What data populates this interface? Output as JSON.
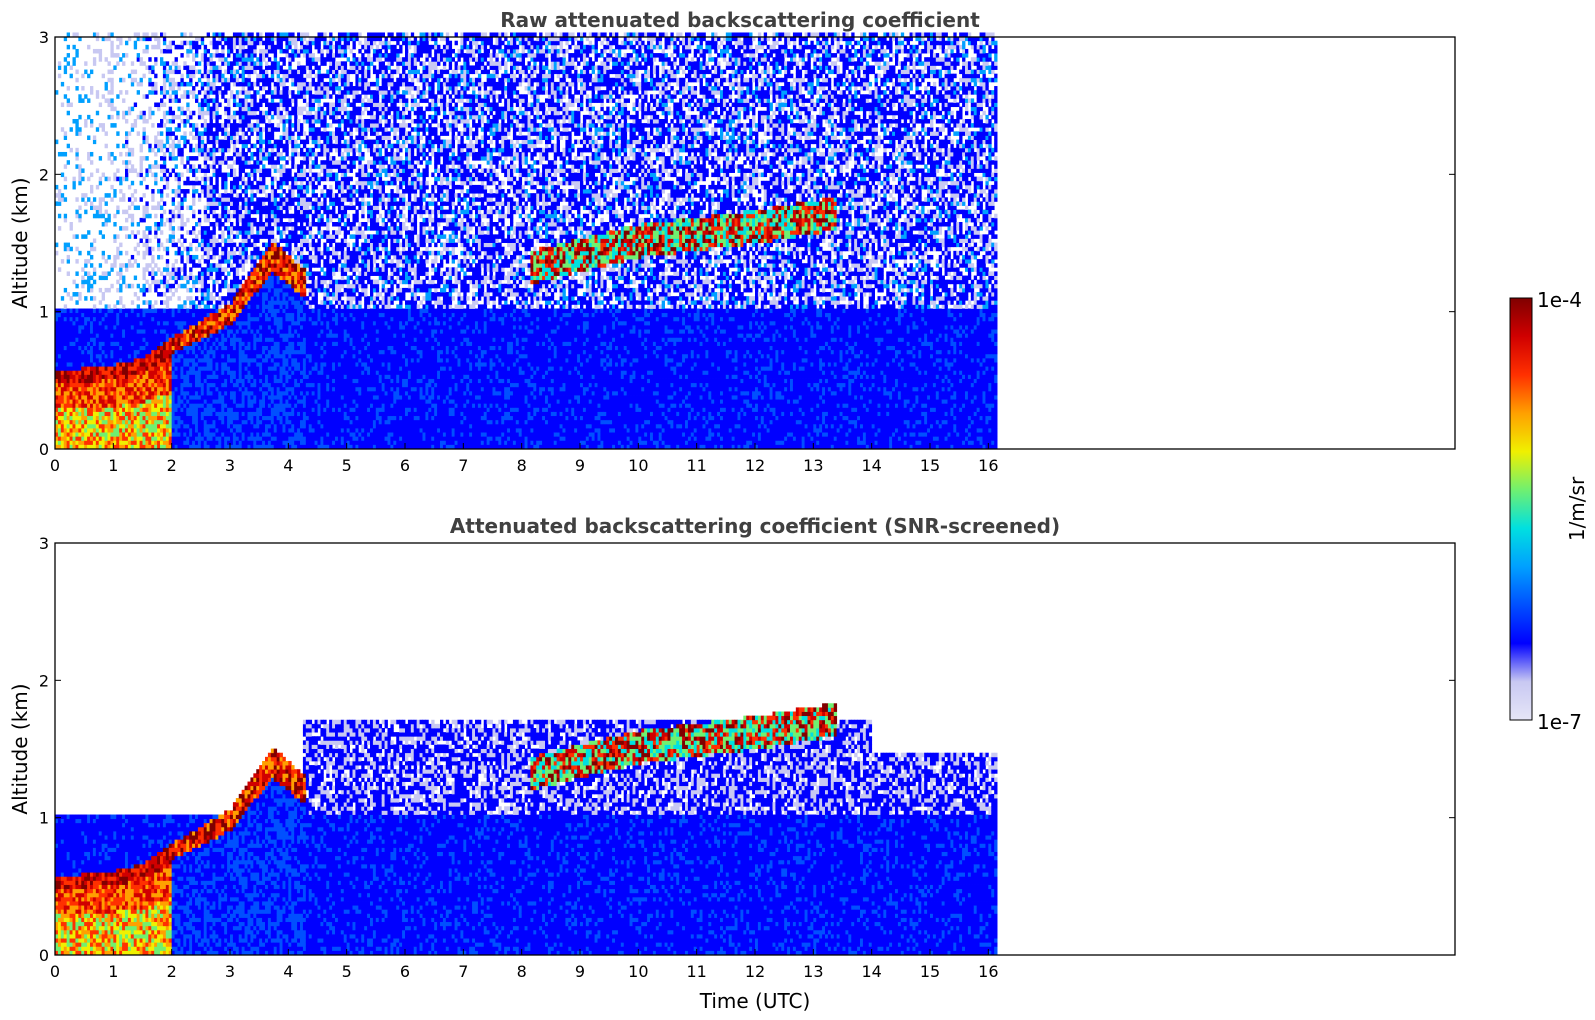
{
  "colors": {
    "colormap": [
      "#e6e6f7",
      "#c8c8f2",
      "#0000ff",
      "#0050ff",
      "#00a0ff",
      "#00e0e0",
      "#70f070",
      "#f0f000",
      "#ffa000",
      "#ff3000",
      "#d00000",
      "#800000"
    ],
    "background": "#ffffff",
    "title": "#404040"
  },
  "chart_data": [
    {
      "type": "heatmap",
      "title": "Raw attenuated backscattering coefficient",
      "xlabel": "",
      "ylabel": "Altitude (km)",
      "xlim": [
        0,
        24
      ],
      "ylim": [
        0,
        3
      ],
      "xticks": [
        "0",
        "1",
        "2",
        "3",
        "4",
        "5",
        "6",
        "7",
        "8",
        "9",
        "10",
        "11",
        "12",
        "13",
        "14",
        "15",
        "16"
      ],
      "yticks": [
        "0",
        "1",
        "2",
        "3"
      ],
      "data_extent_hours": 16.15,
      "features": {
        "aerosol_layer_top_km": [
          {
            "time": 0,
            "alt": 0.55
          },
          {
            "time": 1,
            "alt": 0.6
          },
          {
            "time": 1.5,
            "alt": 0.65
          },
          {
            "time": 2,
            "alt": 0.8
          },
          {
            "time": 3,
            "alt": 1.05
          },
          {
            "time": 3.7,
            "alt": 1.5
          },
          {
            "time": 4.2,
            "alt": 1.3
          }
        ],
        "cloud_layer_km": [
          {
            "time": 8.1,
            "alt": 1.3
          },
          {
            "time": 9,
            "alt": 1.4
          },
          {
            "time": 10,
            "alt": 1.5
          },
          {
            "time": 11,
            "alt": 1.55
          },
          {
            "time": 12,
            "alt": 1.6
          },
          {
            "time": 13.4,
            "alt": 1.7
          }
        ]
      }
    },
    {
      "type": "heatmap",
      "title": "Attenuated backscattering coefficient (SNR-screened)",
      "xlabel": "Time (UTC)",
      "ylabel": "Altitude (km)",
      "xlim": [
        0,
        24
      ],
      "ylim": [
        0,
        3
      ],
      "xticks": [
        "0",
        "1",
        "2",
        "3",
        "4",
        "5",
        "6",
        "7",
        "8",
        "9",
        "10",
        "11",
        "12",
        "13",
        "14",
        "15",
        "16"
      ],
      "yticks": [
        "0",
        "1",
        "2",
        "3"
      ],
      "data_extent_hours": 16.15
    }
  ],
  "colorbar": {
    "max_label": "1e-4",
    "min_label": "1e-7",
    "unit_label": "1/m/sr",
    "scale": "log"
  }
}
